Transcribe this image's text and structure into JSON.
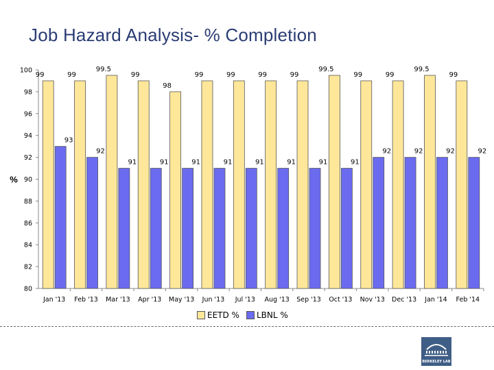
{
  "title": "Job Hazard Analysis- % Completion",
  "chart_data": {
    "type": "bar",
    "title": "Job Hazard Analysis- % Completion",
    "ylabel": "%",
    "xlabel": "",
    "ylim": [
      80,
      100
    ],
    "yticks": [
      80,
      82,
      84,
      86,
      88,
      90,
      92,
      94,
      96,
      98,
      100
    ],
    "grid": false,
    "legend_position": "bottom",
    "categories": [
      "Jan '13",
      "Feb '13",
      "Mar '13",
      "Apr '13",
      "May '13",
      "Jun '13",
      "Jul '13",
      "Aug '13",
      "Sep '13",
      "Oct '13",
      "Nov '13",
      "Dec '13",
      "Jan '14",
      "Feb '14"
    ],
    "series": [
      {
        "name": "EETD %",
        "color": "#ffe79a",
        "values": [
          99,
          99,
          99.5,
          99,
          98,
          99,
          99,
          99,
          99,
          99.5,
          99,
          99,
          99.5,
          99
        ]
      },
      {
        "name": "LBNL %",
        "color": "#6b6bf0",
        "values": [
          93,
          92,
          91,
          91,
          91,
          91,
          91,
          91,
          91,
          91,
          92,
          92,
          92,
          92
        ]
      }
    ]
  },
  "logo": {
    "text": "BERKELEY LAB",
    "color": "#3f5e86"
  }
}
